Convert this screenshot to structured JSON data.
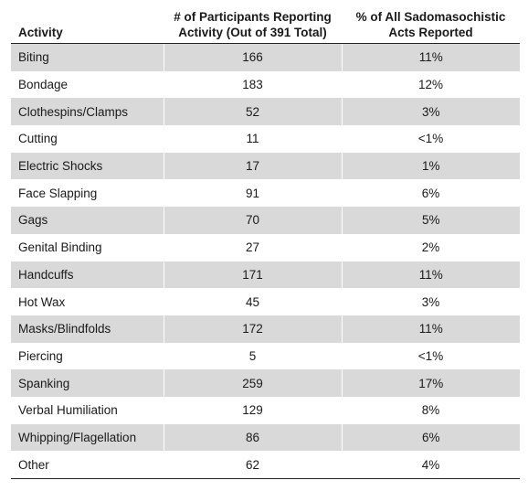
{
  "table": {
    "headers": {
      "activity": "Activity",
      "participants_line1": "# of Participants Reporting",
      "participants_line2": "Activity (Out of 391 Total)",
      "percent_line1": "% of All Sadomasochistic",
      "percent_line2": "Acts Reported"
    },
    "rows": [
      {
        "activity": "Biting",
        "count": "166",
        "percent": "11%"
      },
      {
        "activity": "Bondage",
        "count": "183",
        "percent": "12%"
      },
      {
        "activity": "Clothespins/Clamps",
        "count": "52",
        "percent": "3%"
      },
      {
        "activity": "Cutting",
        "count": "11",
        "percent": "<1%"
      },
      {
        "activity": "Electric Shocks",
        "count": "17",
        "percent": "1%"
      },
      {
        "activity": "Face Slapping",
        "count": "91",
        "percent": "6%"
      },
      {
        "activity": "Gags",
        "count": "70",
        "percent": "5%"
      },
      {
        "activity": "Genital Binding",
        "count": "27",
        "percent": "2%"
      },
      {
        "activity": "Handcuffs",
        "count": "171",
        "percent": "11%"
      },
      {
        "activity": "Hot Wax",
        "count": "45",
        "percent": "3%"
      },
      {
        "activity": "Masks/Blindfolds",
        "count": "172",
        "percent": "11%"
      },
      {
        "activity": "Piercing",
        "count": "5",
        "percent": "<1%"
      },
      {
        "activity": "Spanking",
        "count": "259",
        "percent": "17%"
      },
      {
        "activity": "Verbal Humiliation",
        "count": "129",
        "percent": "8%"
      },
      {
        "activity": "Whipping/Flagellation",
        "count": "86",
        "percent": "6%"
      },
      {
        "activity": "Other",
        "count": "62",
        "percent": "4%"
      }
    ],
    "shade_color": "#d9d9d9"
  }
}
